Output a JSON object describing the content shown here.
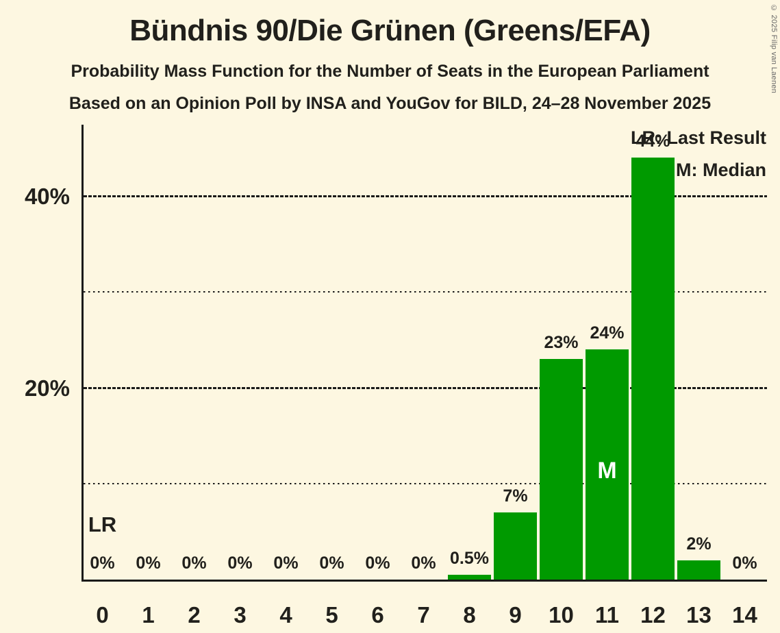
{
  "header": {
    "title": "Bündnis 90/Die Grünen (Greens/EFA)",
    "subtitle1": "Probability Mass Function for the Number of Seats in the European Parliament",
    "subtitle2": "Based on an Opinion Poll by INSA and YouGov for BILD, 24–28 November 2025"
  },
  "legend": {
    "lr": "LR: Last Result",
    "m": "M: Median"
  },
  "annotations": {
    "last_result_label": "LR",
    "median_label": "M"
  },
  "footer": {
    "copyright": "© 2025 Filip van Laenen"
  },
  "colors": {
    "background": "#FDF7E1",
    "bar": "#009A00",
    "text": "#21201C",
    "axis": "#1A1A19",
    "median_text": "#FFFFFF",
    "copyright": "#666666"
  },
  "y_axis": {
    "major_ticks": [
      {
        "value": 20,
        "label": "20%"
      },
      {
        "value": 40,
        "label": "40%"
      }
    ],
    "minor_tick_values": [
      10,
      30
    ]
  },
  "chart_data": {
    "type": "bar",
    "title": "Probability Mass Function for the Number of Seats in the European Parliament",
    "categories": [
      "0",
      "1",
      "2",
      "3",
      "4",
      "5",
      "6",
      "7",
      "8",
      "9",
      "10",
      "11",
      "12",
      "13",
      "14"
    ],
    "values": [
      0,
      0,
      0,
      0,
      0,
      0,
      0,
      0,
      0.5,
      7,
      23,
      24,
      44,
      2,
      0
    ],
    "bar_labels": [
      "0%",
      "0%",
      "0%",
      "0%",
      "0%",
      "0%",
      "0%",
      "0%",
      "0.5%",
      "7%",
      "23%",
      "24%",
      "44%",
      "2%",
      "0%"
    ],
    "xlabel": "",
    "ylabel": "",
    "ylim": [
      0,
      47.5
    ],
    "grid": "horizontal-dashed-major-dotted-minor",
    "legend_position": "top-right",
    "median_seat": 11,
    "last_result_marker_seat": 0
  }
}
